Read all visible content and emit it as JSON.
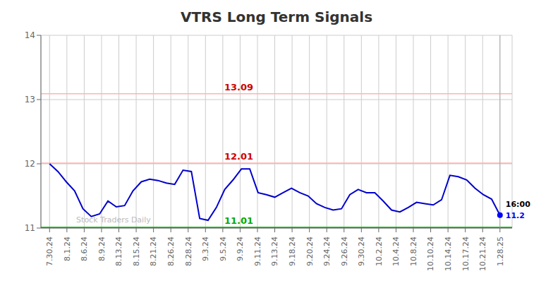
{
  "chart_data": {
    "type": "line",
    "title": "VTRS Long Term Signals",
    "grid": true,
    "xlim": [
      -0.5,
      26.7
    ],
    "xticks": [
      {
        "value": 0,
        "label": "7.30.24"
      },
      {
        "value": 1,
        "label": "8.1.24"
      },
      {
        "value": 2,
        "label": "8.6.24"
      },
      {
        "value": 3,
        "label": "8.9.24"
      },
      {
        "value": 4,
        "label": "8.13.24"
      },
      {
        "value": 5,
        "label": "8.15.24"
      },
      {
        "value": 6,
        "label": "8.21.24"
      },
      {
        "value": 7,
        "label": "8.26.24"
      },
      {
        "value": 8,
        "label": "8.28.24"
      },
      {
        "value": 9,
        "label": "9.3.24"
      },
      {
        "value": 10,
        "label": "9.5.24"
      },
      {
        "value": 11,
        "label": "9.9.24"
      },
      {
        "value": 12,
        "label": "9.11.24"
      },
      {
        "value": 13,
        "label": "9.13.24"
      },
      {
        "value": 14,
        "label": "9.18.24"
      },
      {
        "value": 15,
        "label": "9.20.24"
      },
      {
        "value": 16,
        "label": "9.24.24"
      },
      {
        "value": 17,
        "label": "9.26.24"
      },
      {
        "value": 18,
        "label": "9.30.24"
      },
      {
        "value": 19,
        "label": "10.2.24"
      },
      {
        "value": 20,
        "label": "10.4.24"
      },
      {
        "value": 21,
        "label": "10.8.24"
      },
      {
        "value": 22,
        "label": "10.10.24"
      },
      {
        "value": 23,
        "label": "10.14.24"
      },
      {
        "value": 24,
        "label": "10.17.24"
      },
      {
        "value": 25,
        "label": "10.21.24"
      },
      {
        "value": 26,
        "label": "1.28.25"
      }
    ],
    "ylim": [
      11.0,
      14.0
    ],
    "yticks": [
      11,
      12,
      13,
      14
    ],
    "color": "#0000cc",
    "values": [
      12.0,
      11.88,
      11.72,
      11.58,
      11.3,
      11.18,
      11.22,
      11.42,
      11.33,
      11.35,
      11.58,
      11.72,
      11.76,
      11.74,
      11.7,
      11.68,
      11.9,
      11.88,
      11.15,
      11.12,
      11.32,
      11.6,
      11.75,
      11.92,
      11.92,
      11.55,
      11.52,
      11.48,
      11.55,
      11.62,
      11.55,
      11.5,
      11.38,
      11.32,
      11.28,
      11.3,
      11.52,
      11.6,
      11.55,
      11.55,
      11.42,
      11.28,
      11.25,
      11.32,
      11.4,
      11.38,
      11.36,
      11.44,
      11.82,
      11.8,
      11.75,
      11.62,
      11.52,
      11.45,
      11.2
    ],
    "annotations": [
      {
        "text": "13.09",
        "y": 13.09,
        "color": "#cc0000",
        "line_color": "#ffb3b3"
      },
      {
        "text": "12.01",
        "y": 12.01,
        "color": "#cc0000",
        "line_color": "#ffb3b3"
      },
      {
        "text": "11.01",
        "y": 11.01,
        "color": "#00aa00",
        "line_color": "#00aa00"
      }
    ],
    "vline": {
      "x": 26,
      "color": "#aaaaaa"
    },
    "endpoint": {
      "time_label": "16:00",
      "value_label": "11.2",
      "color": "#0000ff"
    },
    "watermark": {
      "text": "Stock Traders Daily",
      "color": "#bbbbbb"
    }
  }
}
